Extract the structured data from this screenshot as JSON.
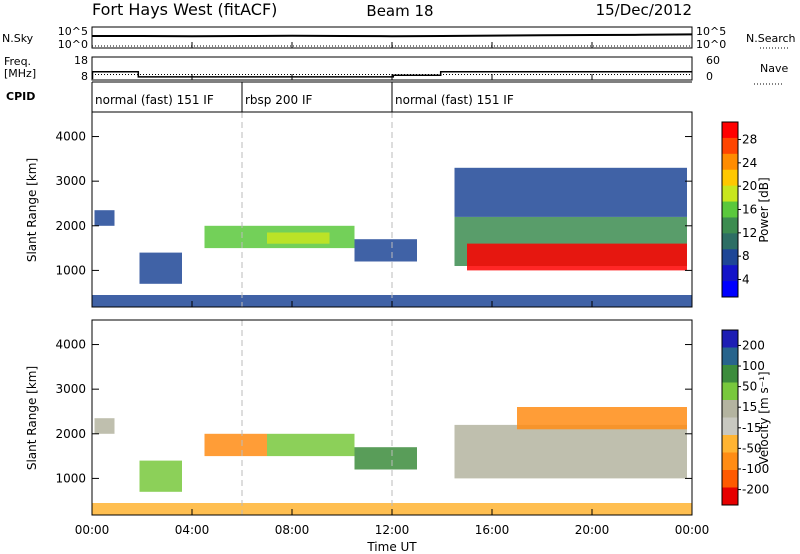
{
  "header": {
    "title": "Fort Hays West (fitACF)",
    "beam": "Beam 18",
    "date": "15/Dec/2012"
  },
  "noise_panel": {
    "left_label": "N.Sky",
    "right_label": "N.Search",
    "ticks": [
      "10^5",
      "10^0"
    ]
  },
  "freq_panel": {
    "left_label_1": "Freq.",
    "left_label_2": "[MHz]",
    "left_ticks": [
      "18",
      "8"
    ],
    "right_label": "Nave",
    "right_ticks": [
      "60",
      "0"
    ]
  },
  "cpid": {
    "label": "CPID",
    "segments": [
      {
        "text": "normal (fast) 151 IF",
        "start_hour": 0,
        "end_hour": 6
      },
      {
        "text": "rbsp 200 IF",
        "start_hour": 6,
        "end_hour": 12
      },
      {
        "text": "normal (fast) 151 IF",
        "start_hour": 12,
        "end_hour": 24
      }
    ]
  },
  "power_colorbar": {
    "title": "Power [dB]",
    "ticks": [
      "28",
      "24",
      "20",
      "16",
      "12",
      "8",
      "4"
    ],
    "colors": [
      "#ff0000",
      "#ff4500",
      "#ff8c00",
      "#ffc800",
      "#c8e61e",
      "#5ac83c",
      "#3c8c50",
      "#2d6e64",
      "#1e4696",
      "#1414c8",
      "#0000ff"
    ]
  },
  "velocity_colorbar": {
    "title": "Velocity [m s⁻¹]",
    "ticks": [
      "200",
      "100",
      "50",
      "15",
      "-15",
      "-50",
      "-100",
      "-200"
    ],
    "colors": [
      "#1e1eb4",
      "#28648c",
      "#3c8c3c",
      "#78c83c",
      "#b4b4a0",
      "#c8c8c0",
      "#ffb432",
      "#ff8c14",
      "#ff5a00",
      "#e60000"
    ]
  },
  "axes": {
    "xlabel": "Time UT",
    "x_ticks": [
      "00:00",
      "04:00",
      "08:00",
      "12:00",
      "16:00",
      "20:00",
      "00:00"
    ],
    "ylabel": "Slant Range [km]",
    "y_ticks": [
      "1000",
      "2000",
      "3000",
      "4000"
    ]
  },
  "chart_data": [
    {
      "type": "line",
      "title": "",
      "x_range_hours": [
        0,
        24
      ],
      "series": [
        {
          "name": "N.Sky",
          "x": [
            0,
            2,
            4,
            6,
            8,
            10,
            12,
            14,
            16,
            18,
            20,
            22,
            24
          ],
          "y": [
            1.5,
            1.5,
            1.45,
            1.5,
            1.55,
            1.5,
            1.45,
            1.5,
            1.6,
            1.7,
            1.75,
            1.8,
            1.9
          ]
        },
        {
          "name": "N.Search",
          "x": [
            0,
            24
          ],
          "y": [
            0,
            0
          ]
        }
      ],
      "yscale": "log"
    },
    {
      "type": "line",
      "title": "",
      "series": [
        {
          "name": "Freq.",
          "x": [
            0.02,
            0.02,
            1.85,
            1.85,
            12.05,
            12.05,
            13.95,
            13.95,
            24
          ],
          "y": [
            8,
            11.5,
            11.5,
            9,
            9,
            9.8,
            9.8,
            11.5,
            11.5
          ]
        },
        {
          "name": "Nave",
          "x": [
            0,
            24
          ],
          "y": [
            13,
            13
          ]
        }
      ],
      "ylim": [
        8,
        18
      ],
      "y2lim": [
        0,
        60
      ]
    },
    {
      "type": "heatmap",
      "title": "",
      "xlabel": "Time UT",
      "ylabel": "Slant Range [km]",
      "colorbar": "Power [dB]",
      "xlim": [
        0,
        24
      ],
      "ylim": [
        180,
        4550
      ],
      "regions": [
        {
          "t0": 0.1,
          "t1": 0.9,
          "r0": 2000,
          "r1": 2350,
          "value": 6
        },
        {
          "t0": 1.9,
          "t1": 3.6,
          "r0": 700,
          "r1": 1400,
          "value": 5
        },
        {
          "t0": 4.5,
          "t1": 10.5,
          "r0": 1500,
          "r1": 2000,
          "value": 13
        },
        {
          "t0": 7.0,
          "t1": 9.5,
          "r0": 1600,
          "r1": 1850,
          "value": 17
        },
        {
          "t0": 10.5,
          "t1": 13.0,
          "r0": 1200,
          "r1": 1700,
          "value": 6
        },
        {
          "t0": 14.5,
          "t1": 23.8,
          "r0": 1100,
          "r1": 2200,
          "value": 12
        },
        {
          "t0": 15.0,
          "t1": 23.8,
          "r0": 1000,
          "r1": 1600,
          "value": 28
        },
        {
          "t0": 14.5,
          "t1": 23.8,
          "r0": 2200,
          "r1": 3300,
          "value": 5
        },
        {
          "t0": 0.0,
          "t1": 24.0,
          "r0": 180,
          "r1": 450,
          "value": 6
        }
      ]
    },
    {
      "type": "heatmap",
      "title": "",
      "xlabel": "Time UT",
      "ylabel": "Slant Range [km]",
      "colorbar": "Velocity [m s⁻¹]",
      "xlim": [
        0,
        24
      ],
      "ylim": [
        180,
        4550
      ],
      "regions": [
        {
          "t0": 0.1,
          "t1": 0.9,
          "r0": 2000,
          "r1": 2350,
          "value": 0
        },
        {
          "t0": 1.9,
          "t1": 3.6,
          "r0": 700,
          "r1": 1400,
          "value": 30
        },
        {
          "t0": 4.5,
          "t1": 7.0,
          "r0": 1500,
          "r1": 2000,
          "value": -60
        },
        {
          "t0": 7.0,
          "t1": 10.5,
          "r0": 1500,
          "r1": 2000,
          "value": 40
        },
        {
          "t0": 10.5,
          "t1": 13.0,
          "r0": 1200,
          "r1": 1700,
          "value": 60
        },
        {
          "t0": 14.5,
          "t1": 23.8,
          "r0": 1000,
          "r1": 2200,
          "value": 0
        },
        {
          "t0": 17.0,
          "t1": 23.8,
          "r0": 2100,
          "r1": 2600,
          "value": -70
        },
        {
          "t0": 0.0,
          "t1": 24.0,
          "r0": 180,
          "r1": 450,
          "value": -40
        }
      ]
    }
  ]
}
